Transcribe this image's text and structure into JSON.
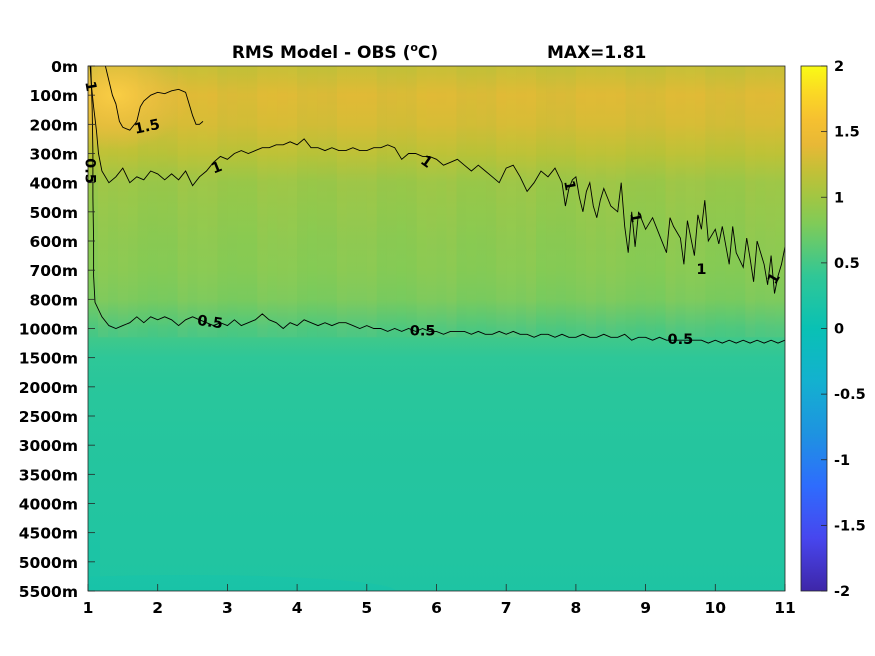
{
  "chart_data": {
    "type": "heatmap",
    "title": "RMS Model - OBS (°C)",
    "title_parts": {
      "main": "RMS Model - OBS (",
      "superscript": "o",
      "unit_end": "C)"
    },
    "annotation": "MAX=1.81",
    "max_value": 1.81,
    "x_ticks": [
      "1",
      "2",
      "3",
      "4",
      "5",
      "6",
      "7",
      "8",
      "9",
      "10",
      "11"
    ],
    "x_range": [
      1,
      11
    ],
    "y_ticks": [
      "0m",
      "100m",
      "200m",
      "300m",
      "400m",
      "500m",
      "600m",
      "700m",
      "800m",
      "1000m",
      "1500m",
      "2000m",
      "2500m",
      "3000m",
      "3500m",
      "4000m",
      "4500m",
      "5000m",
      "5500m"
    ],
    "y_orientation": "depth increasing downward",
    "colorbar": {
      "colormap": "parula",
      "range": [
        -2,
        2
      ],
      "ticks": [
        "2",
        "1.5",
        "1",
        "0.5",
        "0",
        "-0.5",
        "-1",
        "-1.5",
        "-2"
      ]
    },
    "contour_levels": [
      "1.5",
      "1",
      "0.5"
    ],
    "contour_labels": [
      {
        "text": "1",
        "x": 1.03,
        "depth_level": 0.7,
        "rotate": 80
      },
      {
        "text": "1.5",
        "x": 1.85,
        "depth_level": 2.1,
        "rotate": -12
      },
      {
        "text": "0.5",
        "x": 1.02,
        "depth_level": 3.6,
        "rotate": 90
      },
      {
        "text": "1",
        "x": 2.85,
        "depth_level": 3.5,
        "rotate": -22
      },
      {
        "text": "1",
        "x": 5.85,
        "depth_level": 3.3,
        "rotate": 35
      },
      {
        "text": "1",
        "x": 7.9,
        "depth_level": 4.1,
        "rotate": 80
      },
      {
        "text": "1",
        "x": 8.85,
        "depth_level": 5.2,
        "rotate": 80
      },
      {
        "text": "1",
        "x": 9.8,
        "depth_level": 7.0,
        "rotate": 0
      },
      {
        "text": "1",
        "x": 10.85,
        "depth_level": 7.3,
        "rotate": -60
      },
      {
        "text": "0.5",
        "x": 2.75,
        "depth_level": 8.8,
        "rotate": 8
      },
      {
        "text": "0.5",
        "x": 5.8,
        "depth_level": 9.1,
        "rotate": 0
      },
      {
        "text": "0.5",
        "x": 9.5,
        "depth_level": 9.4,
        "rotate": 0
      }
    ],
    "contours": [
      {
        "level": "1.5",
        "points": [
          [
            1.25,
            0.0
          ],
          [
            1.3,
            0.5
          ],
          [
            1.35,
            1.0
          ],
          [
            1.4,
            1.3
          ],
          [
            1.45,
            1.9
          ],
          [
            1.5,
            2.1
          ],
          [
            1.6,
            2.2
          ],
          [
            1.7,
            1.9
          ],
          [
            1.75,
            1.4
          ],
          [
            1.8,
            1.2
          ],
          [
            1.9,
            1.0
          ],
          [
            2.0,
            0.9
          ],
          [
            2.1,
            0.95
          ],
          [
            2.2,
            0.85
          ],
          [
            2.3,
            0.8
          ],
          [
            2.4,
            0.9
          ],
          [
            2.45,
            1.3
          ],
          [
            2.5,
            1.7
          ],
          [
            2.55,
            2.0
          ],
          [
            2.6,
            2.0
          ],
          [
            2.65,
            1.9
          ]
        ]
      },
      {
        "level": "1",
        "points": [
          [
            1.03,
            0.0
          ],
          [
            1.05,
            0.7
          ],
          [
            1.08,
            1.4
          ],
          [
            1.12,
            2.2
          ],
          [
            1.15,
            3.0
          ],
          [
            1.2,
            3.6
          ],
          [
            1.3,
            4.0
          ],
          [
            1.4,
            3.8
          ],
          [
            1.5,
            3.5
          ],
          [
            1.6,
            4.0
          ],
          [
            1.7,
            3.8
          ],
          [
            1.8,
            3.9
          ],
          [
            1.9,
            3.6
          ],
          [
            2.0,
            3.7
          ],
          [
            2.1,
            3.9
          ],
          [
            2.2,
            3.7
          ],
          [
            2.3,
            3.9
          ],
          [
            2.4,
            3.6
          ],
          [
            2.5,
            4.1
          ],
          [
            2.6,
            3.8
          ],
          [
            2.7,
            3.6
          ],
          [
            2.8,
            3.3
          ],
          [
            2.9,
            3.1
          ],
          [
            3.0,
            3.2
          ],
          [
            3.1,
            3.0
          ],
          [
            3.2,
            2.9
          ],
          [
            3.3,
            3.0
          ],
          [
            3.4,
            2.9
          ],
          [
            3.5,
            2.8
          ],
          [
            3.6,
            2.8
          ],
          [
            3.7,
            2.7
          ],
          [
            3.8,
            2.7
          ],
          [
            3.9,
            2.6
          ],
          [
            4.0,
            2.7
          ],
          [
            4.1,
            2.5
          ],
          [
            4.2,
            2.8
          ],
          [
            4.3,
            2.8
          ],
          [
            4.4,
            2.9
          ],
          [
            4.5,
            2.8
          ],
          [
            4.6,
            2.9
          ],
          [
            4.7,
            2.9
          ],
          [
            4.8,
            2.8
          ],
          [
            4.9,
            2.9
          ],
          [
            5.0,
            2.9
          ],
          [
            5.1,
            2.8
          ],
          [
            5.2,
            2.8
          ],
          [
            5.3,
            2.7
          ],
          [
            5.4,
            2.8
          ],
          [
            5.5,
            3.2
          ],
          [
            5.6,
            3.0
          ],
          [
            5.7,
            3.0
          ],
          [
            5.8,
            3.1
          ],
          [
            5.9,
            3.1
          ],
          [
            6.0,
            3.2
          ],
          [
            6.1,
            3.4
          ],
          [
            6.2,
            3.3
          ],
          [
            6.3,
            3.2
          ],
          [
            6.4,
            3.4
          ],
          [
            6.5,
            3.6
          ],
          [
            6.6,
            3.4
          ],
          [
            6.7,
            3.6
          ],
          [
            6.8,
            3.8
          ],
          [
            6.9,
            4.0
          ],
          [
            7.0,
            3.5
          ],
          [
            7.1,
            3.4
          ],
          [
            7.2,
            3.8
          ],
          [
            7.3,
            4.3
          ],
          [
            7.4,
            4.0
          ],
          [
            7.5,
            3.6
          ],
          [
            7.6,
            3.8
          ],
          [
            7.7,
            3.5
          ],
          [
            7.8,
            4.0
          ],
          [
            7.85,
            4.8
          ],
          [
            7.9,
            4.2
          ],
          [
            7.95,
            3.9
          ],
          [
            8.0,
            3.8
          ],
          [
            8.05,
            4.5
          ],
          [
            8.1,
            5.0
          ],
          [
            8.15,
            4.3
          ],
          [
            8.2,
            4.0
          ],
          [
            8.25,
            4.8
          ],
          [
            8.3,
            5.2
          ],
          [
            8.35,
            4.6
          ],
          [
            8.4,
            4.2
          ],
          [
            8.5,
            4.8
          ],
          [
            8.6,
            5.0
          ],
          [
            8.65,
            4.0
          ],
          [
            8.7,
            5.5
          ],
          [
            8.75,
            6.4
          ],
          [
            8.8,
            5.0
          ],
          [
            8.85,
            6.2
          ],
          [
            8.9,
            5.0
          ],
          [
            8.95,
            5.3
          ],
          [
            9.0,
            5.6
          ],
          [
            9.1,
            5.2
          ],
          [
            9.2,
            5.8
          ],
          [
            9.3,
            6.4
          ],
          [
            9.35,
            5.2
          ],
          [
            9.4,
            5.5
          ],
          [
            9.5,
            5.9
          ],
          [
            9.55,
            6.8
          ],
          [
            9.6,
            5.3
          ],
          [
            9.7,
            6.5
          ],
          [
            9.75,
            5.1
          ],
          [
            9.8,
            5.6
          ],
          [
            9.85,
            4.6
          ],
          [
            9.9,
            6.0
          ],
          [
            10.0,
            5.6
          ],
          [
            10.05,
            6.1
          ],
          [
            10.1,
            5.5
          ],
          [
            10.2,
            6.8
          ],
          [
            10.25,
            5.5
          ],
          [
            10.3,
            6.4
          ],
          [
            10.4,
            6.9
          ],
          [
            10.45,
            5.9
          ],
          [
            10.5,
            6.6
          ],
          [
            10.55,
            7.4
          ],
          [
            10.6,
            6.0
          ],
          [
            10.7,
            6.8
          ],
          [
            10.75,
            7.5
          ],
          [
            10.8,
            6.5
          ],
          [
            10.85,
            7.8
          ],
          [
            10.9,
            7.2
          ],
          [
            10.95,
            6.8
          ],
          [
            11.0,
            6.2
          ]
        ]
      },
      {
        "level": "0.5",
        "points": [
          [
            1.04,
            0.0
          ],
          [
            1.06,
            1.5
          ],
          [
            1.07,
            3.0
          ],
          [
            1.07,
            4.5
          ],
          [
            1.08,
            6.0
          ],
          [
            1.08,
            7.2
          ],
          [
            1.1,
            8.1
          ],
          [
            1.2,
            8.6
          ],
          [
            1.3,
            8.9
          ],
          [
            1.4,
            9.0
          ],
          [
            1.5,
            8.9
          ],
          [
            1.6,
            8.8
          ],
          [
            1.7,
            8.6
          ],
          [
            1.8,
            8.8
          ],
          [
            1.9,
            8.6
          ],
          [
            2.0,
            8.7
          ],
          [
            2.1,
            8.6
          ],
          [
            2.2,
            8.7
          ],
          [
            2.3,
            8.9
          ],
          [
            2.4,
            8.7
          ],
          [
            2.5,
            8.6
          ],
          [
            2.6,
            8.7
          ],
          [
            2.7,
            8.8
          ],
          [
            2.8,
            8.9
          ],
          [
            2.9,
            8.8
          ],
          [
            3.0,
            8.9
          ],
          [
            3.1,
            8.7
          ],
          [
            3.2,
            8.9
          ],
          [
            3.3,
            8.8
          ],
          [
            3.4,
            8.7
          ],
          [
            3.5,
            8.5
          ],
          [
            3.6,
            8.7
          ],
          [
            3.7,
            8.8
          ],
          [
            3.8,
            9.0
          ],
          [
            3.9,
            8.8
          ],
          [
            4.0,
            8.9
          ],
          [
            4.1,
            8.7
          ],
          [
            4.2,
            8.8
          ],
          [
            4.3,
            8.9
          ],
          [
            4.4,
            8.8
          ],
          [
            4.5,
            8.9
          ],
          [
            4.6,
            8.8
          ],
          [
            4.7,
            8.8
          ],
          [
            4.8,
            8.9
          ],
          [
            4.9,
            9.0
          ],
          [
            5.0,
            8.9
          ],
          [
            5.1,
            9.0
          ],
          [
            5.2,
            9.0
          ],
          [
            5.3,
            9.1
          ],
          [
            5.4,
            9.0
          ],
          [
            5.5,
            9.1
          ],
          [
            5.6,
            9.0
          ],
          [
            5.7,
            9.1
          ],
          [
            5.8,
            9.0
          ],
          [
            5.9,
            9.1
          ],
          [
            6.0,
            9.1
          ],
          [
            6.1,
            9.2
          ],
          [
            6.2,
            9.1
          ],
          [
            6.3,
            9.1
          ],
          [
            6.4,
            9.1
          ],
          [
            6.5,
            9.2
          ],
          [
            6.6,
            9.1
          ],
          [
            6.7,
            9.2
          ],
          [
            6.8,
            9.2
          ],
          [
            6.9,
            9.1
          ],
          [
            7.0,
            9.2
          ],
          [
            7.1,
            9.1
          ],
          [
            7.2,
            9.2
          ],
          [
            7.3,
            9.2
          ],
          [
            7.4,
            9.3
          ],
          [
            7.5,
            9.2
          ],
          [
            7.6,
            9.2
          ],
          [
            7.7,
            9.3
          ],
          [
            7.8,
            9.2
          ],
          [
            7.9,
            9.3
          ],
          [
            8.0,
            9.3
          ],
          [
            8.1,
            9.2
          ],
          [
            8.2,
            9.3
          ],
          [
            8.3,
            9.3
          ],
          [
            8.4,
            9.2
          ],
          [
            8.5,
            9.3
          ],
          [
            8.6,
            9.3
          ],
          [
            8.7,
            9.2
          ],
          [
            8.8,
            9.4
          ],
          [
            8.9,
            9.3
          ],
          [
            9.0,
            9.3
          ],
          [
            9.1,
            9.4
          ],
          [
            9.2,
            9.3
          ],
          [
            9.3,
            9.4
          ],
          [
            9.4,
            9.4
          ],
          [
            9.5,
            9.4
          ],
          [
            9.6,
            9.4
          ],
          [
            9.7,
            9.4
          ],
          [
            9.8,
            9.4
          ],
          [
            9.9,
            9.5
          ],
          [
            10.0,
            9.4
          ],
          [
            10.1,
            9.5
          ],
          [
            10.2,
            9.4
          ],
          [
            10.3,
            9.5
          ],
          [
            10.4,
            9.4
          ],
          [
            10.5,
            9.5
          ],
          [
            10.6,
            9.4
          ],
          [
            10.7,
            9.5
          ],
          [
            10.8,
            9.4
          ],
          [
            10.9,
            9.5
          ],
          [
            11.0,
            9.4
          ]
        ]
      }
    ],
    "field_depth_profile": [
      {
        "depth": "0m",
        "value": 1.2
      },
      {
        "depth": "100m",
        "value": 1.35
      },
      {
        "depth": "200m",
        "value": 1.3
      },
      {
        "depth": "300m",
        "value": 1.15
      },
      {
        "depth": "400m",
        "value": 0.95
      },
      {
        "depth": "500m",
        "value": 0.9
      },
      {
        "depth": "600m",
        "value": 0.85
      },
      {
        "depth": "700m",
        "value": 0.82
      },
      {
        "depth": "800m",
        "value": 0.75
      },
      {
        "depth": "1000m",
        "value": 0.52
      },
      {
        "depth": "1500m",
        "value": 0.38
      },
      {
        "depth": "2000m",
        "value": 0.33
      },
      {
        "depth": "2500m",
        "value": 0.31
      },
      {
        "depth": "3000m",
        "value": 0.29
      },
      {
        "depth": "3500m",
        "value": 0.28
      },
      {
        "depth": "4000m",
        "value": 0.27
      },
      {
        "depth": "4500m",
        "value": 0.26
      },
      {
        "depth": "5000m",
        "value": 0.25
      },
      {
        "depth": "5500m",
        "value": 0.22
      }
    ],
    "hotspot": {
      "x": 1.4,
      "depth_level": 1.0,
      "value": 1.81
    }
  }
}
